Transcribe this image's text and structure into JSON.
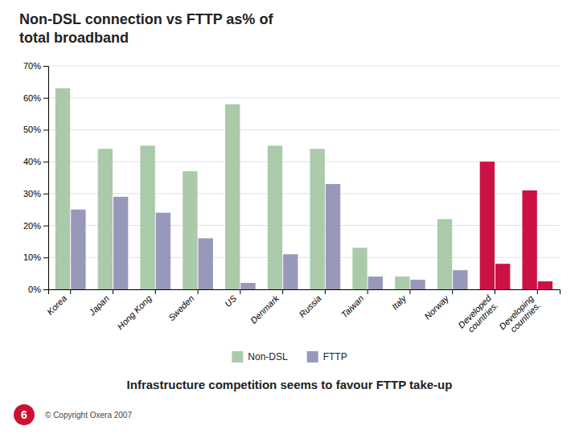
{
  "chart_data": {
    "type": "bar",
    "title": "Non-DSL connection vs FTTP as% of\ntotal broadband",
    "subtitle": "Infrastructure competition seems to favour FTTP take-up",
    "annotations": [
      "6",
      "© Copyright Oxera 2007"
    ],
    "categories": [
      "Korea",
      "Japan",
      "Hong Kong",
      "Sweden",
      "US",
      "Denmark",
      "Russia",
      "Taiwan",
      "Italy",
      "Norway",
      "Developed\ncountries.",
      "Developing\ncountries."
    ],
    "series": [
      {
        "name": "Non-DSL",
        "color": "#aacaaa",
        "colors": [
          "#aacaaa",
          "#aacaaa",
          "#aacaaa",
          "#aacaaa",
          "#aacaaa",
          "#aacaaa",
          "#aacaaa",
          "#aacaaa",
          "#aacaaa",
          "#aacaaa",
          "#cc1144",
          "#cc1144"
        ],
        "values": [
          0.63,
          0.44,
          0.45,
          0.37,
          0.58,
          0.45,
          0.44,
          0.13,
          0.04,
          0.22,
          0.4,
          0.31
        ]
      },
      {
        "name": "FTTP",
        "color": "#9898bb",
        "colors": [
          "#9898bb",
          "#9898bb",
          "#9898bb",
          "#9898bb",
          "#9898bb",
          "#9898bb",
          "#9898bb",
          "#9898bb",
          "#9898bb",
          "#9898bb",
          "#cc1144",
          "#cc1144"
        ],
        "values": [
          0.25,
          0.29,
          0.24,
          0.16,
          0.02,
          0.11,
          0.33,
          0.04,
          0.03,
          0.06,
          0.08,
          0.025
        ]
      }
    ],
    "ylim": [
      0,
      0.7
    ],
    "yticks": [
      {
        "value": 0,
        "label": "0%"
      },
      {
        "value": 0.1,
        "label": "10%"
      },
      {
        "value": 0.2,
        "label": "20%"
      },
      {
        "value": 0.3,
        "label": "30%"
      },
      {
        "value": 0.4,
        "label": "40%"
      },
      {
        "value": 0.5,
        "label": "50%"
      },
      {
        "value": 0.6,
        "label": "60%"
      },
      {
        "value": 0.7,
        "label": "70%"
      }
    ],
    "grid": true,
    "legend": "bottom"
  }
}
